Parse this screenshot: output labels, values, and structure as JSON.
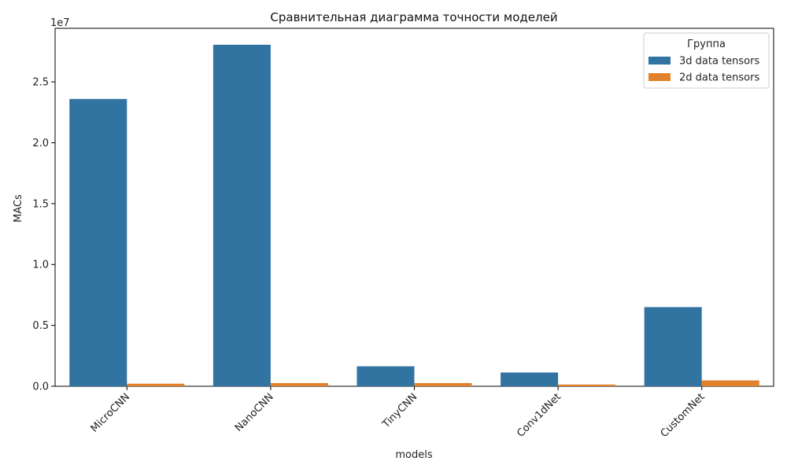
{
  "chart_data": {
    "type": "bar",
    "title": "Сравнительная диаграмма точности моделей",
    "xlabel": "models",
    "ylabel": "MACs",
    "y_offset_label": "1e7",
    "y_scale_exponent": 7,
    "categories": [
      "MicroCNN",
      "NanoCNN",
      "TinyCNN",
      "Conv1dNet",
      "CustomNet"
    ],
    "series": [
      {
        "name": "3d data tensors",
        "color": "#3274a1",
        "values": [
          23600000,
          28050000,
          1640000,
          1130000,
          6500000
        ]
      },
      {
        "name": "2d data tensors",
        "color": "#e1812c",
        "values": [
          210000,
          260000,
          260000,
          140000,
          480000
        ]
      }
    ],
    "ylim": [
      0,
      29400000
    ],
    "yticks": [
      0,
      5000000,
      10000000,
      15000000,
      20000000,
      25000000
    ],
    "ytick_labels": [
      "0.0",
      "0.5",
      "1.0",
      "1.5",
      "2.0",
      "2.5"
    ],
    "legend": {
      "title": "Группа",
      "placement": "top-right"
    },
    "grid": false
  }
}
